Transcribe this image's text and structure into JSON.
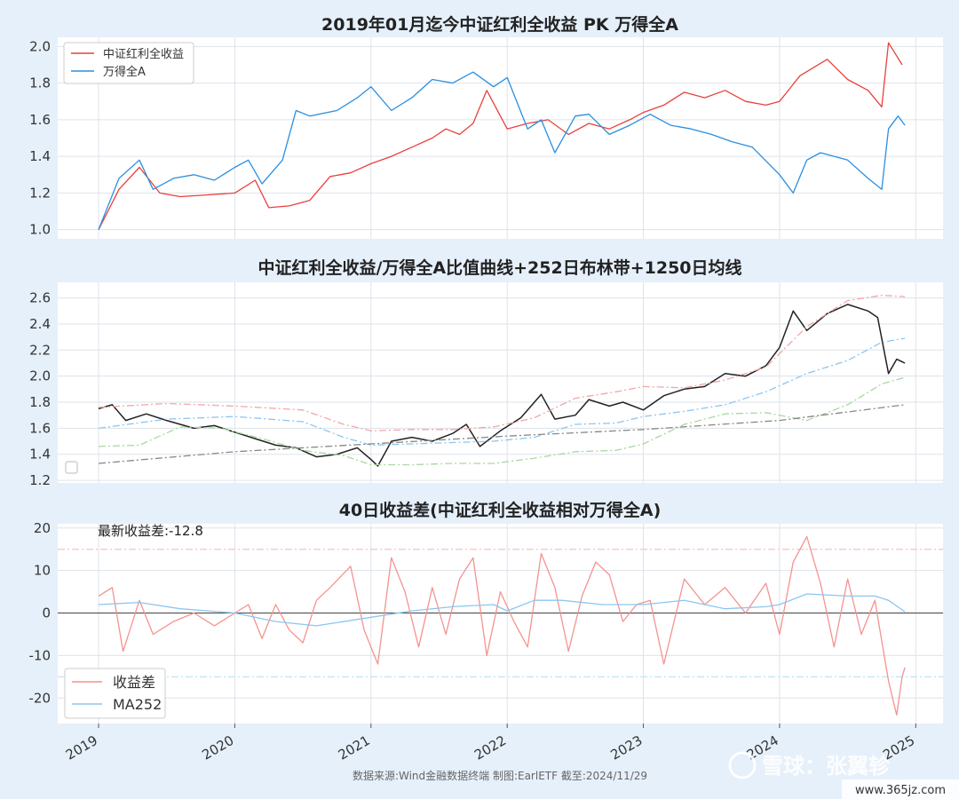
{
  "colors": {
    "bg": "#e6f0fb",
    "panel": "#ffffff",
    "grid": "#dde3ea",
    "dividend": "#e8413c",
    "wind_a": "#2a8fe0",
    "ratio": "#222222",
    "upper_band": "#f4a6a6",
    "mid_band": "#8cc6f0",
    "lower_band": "#a8d8a0",
    "ma1250": "#888888",
    "diff": "#f4938f",
    "ma252": "#8cc6f0",
    "hline_red": "#f6c4c4",
    "hline_blue": "#c4e2f4"
  },
  "x_axis": {
    "ticks": [
      "2019",
      "2020",
      "2021",
      "2022",
      "2023",
      "2024",
      "2025"
    ],
    "tick_values": [
      2019,
      2020,
      2021,
      2022,
      2023,
      2024,
      2025
    ],
    "xlim": [
      2018.7,
      2025.2
    ]
  },
  "chart_data": [
    {
      "type": "line",
      "title": "2019年01月迄今中证红利全收益 PK 万得全A",
      "ylim": [
        0.95,
        2.05
      ],
      "yticks": [
        "1.0",
        "1.2",
        "1.4",
        "1.6",
        "1.8",
        "2.0"
      ],
      "ytick_values": [
        1.0,
        1.2,
        1.4,
        1.6,
        1.8,
        2.0
      ],
      "legend_position": "top-left",
      "series": [
        {
          "name": "中证红利全收益",
          "color_key": "dividend",
          "x": [
            2019.0,
            2019.15,
            2019.3,
            2019.45,
            2019.6,
            2019.8,
            2020.0,
            2020.15,
            2020.25,
            2020.4,
            2020.55,
            2020.7,
            2020.85,
            2021.0,
            2021.15,
            2021.3,
            2021.45,
            2021.55,
            2021.65,
            2021.75,
            2021.85,
            2022.0,
            2022.15,
            2022.3,
            2022.45,
            2022.6,
            2022.75,
            2022.9,
            2023.0,
            2023.15,
            2023.3,
            2023.45,
            2023.6,
            2023.75,
            2023.9,
            2024.0,
            2024.15,
            2024.35,
            2024.5,
            2024.65,
            2024.75,
            2024.8,
            2024.9
          ],
          "values": [
            1.0,
            1.22,
            1.34,
            1.2,
            1.18,
            1.19,
            1.2,
            1.27,
            1.12,
            1.13,
            1.16,
            1.29,
            1.31,
            1.36,
            1.4,
            1.45,
            1.5,
            1.55,
            1.52,
            1.58,
            1.76,
            1.55,
            1.58,
            1.6,
            1.52,
            1.58,
            1.55,
            1.6,
            1.64,
            1.68,
            1.75,
            1.72,
            1.76,
            1.7,
            1.68,
            1.7,
            1.84,
            1.93,
            1.82,
            1.76,
            1.67,
            2.02,
            1.9
          ]
        },
        {
          "name": "万得全A",
          "color_key": "wind_a",
          "x": [
            2019.0,
            2019.15,
            2019.3,
            2019.4,
            2019.55,
            2019.7,
            2019.85,
            2020.0,
            2020.1,
            2020.2,
            2020.35,
            2020.45,
            2020.55,
            2020.75,
            2020.9,
            2021.0,
            2021.15,
            2021.3,
            2021.45,
            2021.6,
            2021.75,
            2021.9,
            2022.0,
            2022.15,
            2022.25,
            2022.35,
            2022.5,
            2022.6,
            2022.75,
            2022.9,
            2023.05,
            2023.2,
            2023.35,
            2023.5,
            2023.65,
            2023.8,
            2024.0,
            2024.1,
            2024.2,
            2024.3,
            2024.5,
            2024.65,
            2024.75,
            2024.8,
            2024.87,
            2024.92
          ],
          "values": [
            1.0,
            1.28,
            1.38,
            1.22,
            1.28,
            1.3,
            1.27,
            1.34,
            1.38,
            1.25,
            1.38,
            1.65,
            1.62,
            1.65,
            1.72,
            1.78,
            1.65,
            1.72,
            1.82,
            1.8,
            1.86,
            1.78,
            1.83,
            1.55,
            1.6,
            1.42,
            1.62,
            1.63,
            1.52,
            1.57,
            1.63,
            1.57,
            1.55,
            1.52,
            1.48,
            1.45,
            1.3,
            1.2,
            1.38,
            1.42,
            1.38,
            1.28,
            1.22,
            1.55,
            1.62,
            1.57
          ]
        }
      ]
    },
    {
      "type": "line",
      "title": "中证红利全收益/万得全A比值曲线+252日布林带+1250日均线",
      "ylim": [
        1.18,
        2.72
      ],
      "yticks": [
        "1.2",
        "1.4",
        "1.6",
        "1.8",
        "2.0",
        "2.2",
        "2.4",
        "2.6"
      ],
      "ytick_values": [
        1.2,
        1.4,
        1.6,
        1.8,
        2.0,
        2.2,
        2.4,
        2.6
      ],
      "series": [
        {
          "color_key": "ratio",
          "dash": "",
          "x": [
            2019.0,
            2019.1,
            2019.2,
            2019.35,
            2019.5,
            2019.7,
            2019.85,
            2020.0,
            2020.15,
            2020.3,
            2020.45,
            2020.6,
            2020.75,
            2020.9,
            2021.0,
            2021.05,
            2021.15,
            2021.3,
            2021.45,
            2021.6,
            2021.7,
            2021.8,
            2021.95,
            2022.1,
            2022.25,
            2022.35,
            2022.5,
            2022.6,
            2022.75,
            2022.85,
            2023.0,
            2023.15,
            2023.3,
            2023.45,
            2023.6,
            2023.75,
            2023.9,
            2024.0,
            2024.1,
            2024.2,
            2024.35,
            2024.5,
            2024.65,
            2024.72,
            2024.8,
            2024.86,
            2024.92
          ],
          "values": [
            1.75,
            1.78,
            1.66,
            1.71,
            1.66,
            1.6,
            1.62,
            1.57,
            1.52,
            1.47,
            1.45,
            1.38,
            1.4,
            1.45,
            1.36,
            1.31,
            1.5,
            1.53,
            1.5,
            1.56,
            1.63,
            1.46,
            1.58,
            1.68,
            1.86,
            1.67,
            1.7,
            1.82,
            1.77,
            1.8,
            1.74,
            1.85,
            1.9,
            1.92,
            2.02,
            2.0,
            2.08,
            2.22,
            2.5,
            2.35,
            2.48,
            2.55,
            2.5,
            2.45,
            2.02,
            2.13,
            2.1
          ]
        },
        {
          "color_key": "upper_band",
          "dash": "8,3,2,3",
          "x": [
            2019.0,
            2019.5,
            2020.0,
            2020.5,
            2020.8,
            2021.0,
            2021.3,
            2021.6,
            2021.9,
            2022.2,
            2022.5,
            2022.8,
            2023.0,
            2023.3,
            2023.6,
            2023.9,
            2024.2,
            2024.5,
            2024.75,
            2024.92
          ],
          "values": [
            1.76,
            1.79,
            1.77,
            1.74,
            1.63,
            1.58,
            1.59,
            1.59,
            1.61,
            1.68,
            1.83,
            1.88,
            1.92,
            1.91,
            1.97,
            2.07,
            2.38,
            2.58,
            2.62,
            2.61
          ]
        },
        {
          "color_key": "mid_band",
          "dash": "8,3,2,3",
          "x": [
            2019.0,
            2019.5,
            2020.0,
            2020.5,
            2020.8,
            2021.0,
            2021.3,
            2021.6,
            2021.9,
            2022.2,
            2022.5,
            2022.8,
            2023.0,
            2023.3,
            2023.6,
            2023.9,
            2024.2,
            2024.5,
            2024.75,
            2024.92
          ],
          "values": [
            1.6,
            1.67,
            1.69,
            1.65,
            1.53,
            1.47,
            1.48,
            1.49,
            1.5,
            1.53,
            1.63,
            1.64,
            1.69,
            1.73,
            1.78,
            1.88,
            2.02,
            2.12,
            2.26,
            2.29
          ]
        },
        {
          "color_key": "lower_band",
          "dash": "8,3,2,3",
          "x": [
            2019.0,
            2019.3,
            2019.6,
            2019.9,
            2020.2,
            2020.5,
            2020.8,
            2021.0,
            2021.3,
            2021.6,
            2021.9,
            2022.2,
            2022.5,
            2022.8,
            2023.0,
            2023.3,
            2023.6,
            2023.9,
            2024.2,
            2024.5,
            2024.75,
            2024.92
          ],
          "values": [
            1.46,
            1.47,
            1.61,
            1.6,
            1.52,
            1.43,
            1.39,
            1.32,
            1.32,
            1.33,
            1.33,
            1.37,
            1.42,
            1.43,
            1.48,
            1.63,
            1.71,
            1.72,
            1.66,
            1.78,
            1.94,
            1.99
          ]
        },
        {
          "color_key": "ma1250",
          "dash": "8,3,2,3",
          "x": [
            2019.0,
            2020.0,
            2021.0,
            2022.0,
            2023.0,
            2024.0,
            2024.92
          ],
          "values": [
            1.33,
            1.42,
            1.48,
            1.54,
            1.59,
            1.66,
            1.78
          ]
        }
      ]
    },
    {
      "type": "line",
      "title": "40日收益差(中证红利全收益相对万得全A)",
      "annotation": "最新收益差:-12.8",
      "ylim": [
        -26,
        21
      ],
      "yticks": [
        "-20",
        "-10",
        "0",
        "10",
        "20"
      ],
      "ytick_values": [
        -20,
        -10,
        0,
        10,
        20
      ],
      "hlines": [
        {
          "y": 15,
          "color_key": "hline_red"
        },
        {
          "y": -15,
          "color_key": "hline_blue"
        }
      ],
      "legend_position": "bottom-left",
      "series": [
        {
          "name": "收益差",
          "color_key": "diff",
          "x": [
            2019.0,
            2019.1,
            2019.18,
            2019.3,
            2019.4,
            2019.55,
            2019.7,
            2019.85,
            2020.0,
            2020.1,
            2020.2,
            2020.3,
            2020.4,
            2020.5,
            2020.6,
            2020.7,
            2020.85,
            2020.95,
            2021.05,
            2021.15,
            2021.25,
            2021.35,
            2021.45,
            2021.55,
            2021.65,
            2021.75,
            2021.85,
            2021.95,
            2022.05,
            2022.15,
            2022.25,
            2022.35,
            2022.45,
            2022.55,
            2022.65,
            2022.75,
            2022.85,
            2022.95,
            2023.05,
            2023.15,
            2023.3,
            2023.45,
            2023.6,
            2023.75,
            2023.9,
            2024.0,
            2024.1,
            2024.2,
            2024.3,
            2024.4,
            2024.5,
            2024.6,
            2024.7,
            2024.8,
            2024.86,
            2024.9,
            2024.92
          ],
          "values": [
            4,
            6,
            -9,
            3,
            -5,
            -2,
            0,
            -3,
            0,
            2,
            -6,
            2,
            -4,
            -7,
            3,
            6,
            11,
            -4,
            -12,
            13,
            5,
            -8,
            6,
            -5,
            8,
            13,
            -10,
            5,
            -2,
            -8,
            14,
            6,
            -9,
            4,
            12,
            9,
            -2,
            2,
            3,
            -12,
            8,
            2,
            6,
            0,
            7,
            -5,
            12,
            18,
            7,
            -8,
            8,
            -5,
            3,
            -16,
            -24,
            -15,
            -12.8
          ]
        },
        {
          "name": "MA252",
          "color_key": "ma252",
          "x": [
            2019.0,
            2019.3,
            2019.6,
            2020.0,
            2020.3,
            2020.6,
            2021.0,
            2021.3,
            2021.6,
            2021.9,
            2022.0,
            2022.2,
            2022.4,
            2022.7,
            2023.0,
            2023.3,
            2023.6,
            2023.9,
            2024.0,
            2024.2,
            2024.5,
            2024.7,
            2024.8,
            2024.92
          ],
          "values": [
            2,
            2.5,
            1,
            0,
            -2,
            -3,
            -1,
            0.5,
            1.5,
            2,
            0.5,
            3,
            3,
            2,
            2,
            3,
            1,
            1.5,
            2,
            4.5,
            4,
            4,
            3,
            0.3
          ]
        }
      ]
    }
  ],
  "footer": {
    "source": "数据来源:Wind金融数据终端  制图:EarlETF 截至:2024/11/29"
  },
  "watermark": {
    "text": "雪球：张翼轸",
    "url": "www.365jz.com"
  }
}
